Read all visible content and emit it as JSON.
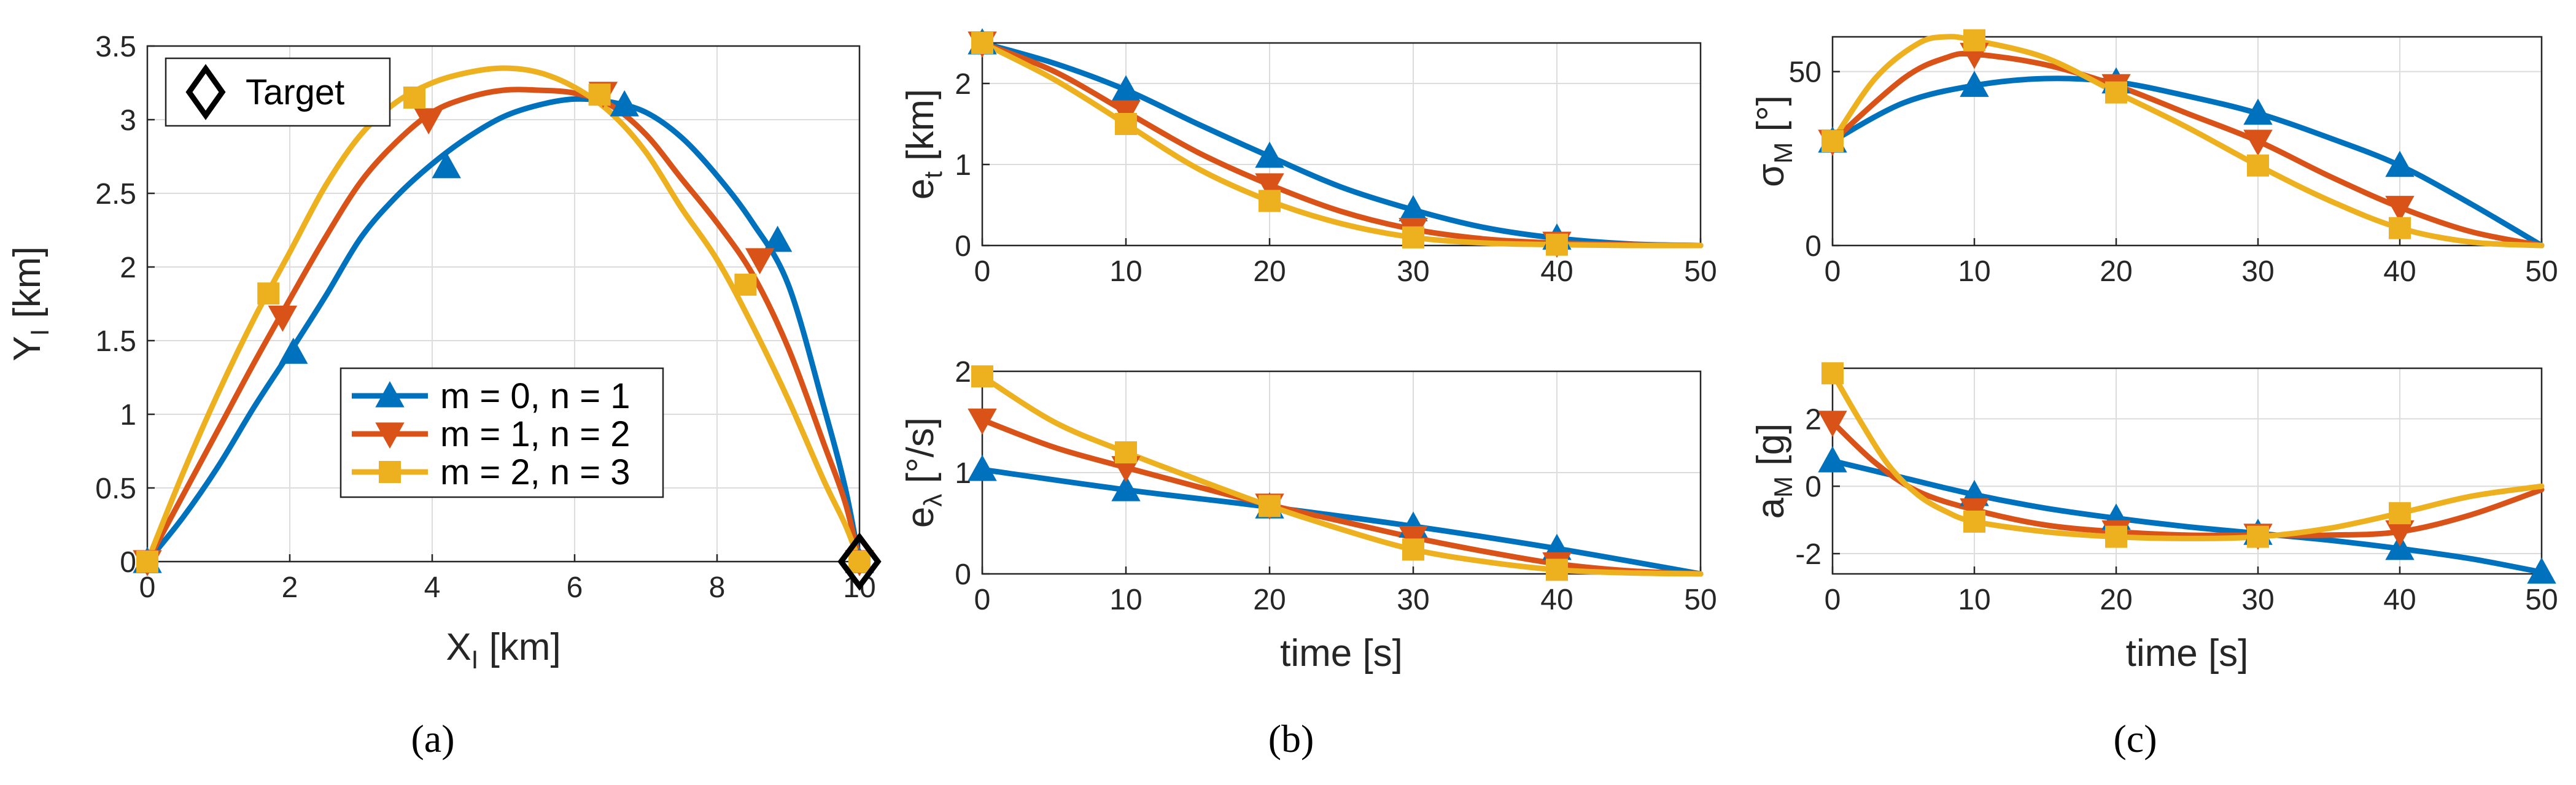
{
  "chart_data": [
    {
      "id": "a",
      "type": "line",
      "panel_label": "(a)",
      "xlabel": "X",
      "xlabel_sub": "I",
      "xlabel_unit": " [km]",
      "ylabel": "Y",
      "ylabel_sub": "I",
      "ylabel_unit": " [km]",
      "xlim": [
        0,
        10
      ],
      "ylim": [
        0,
        3.5
      ],
      "xticks": [
        0,
        2,
        4,
        6,
        8,
        10
      ],
      "yticks": [
        0,
        0.5,
        1,
        1.5,
        2,
        2.5,
        3,
        3.5
      ],
      "yticklabels": [
        "0",
        "0.5",
        "1",
        "1.5",
        "2",
        "2.5",
        "3",
        "3.5"
      ],
      "legend": {
        "placement": "lower-center",
        "entries": [
          "m = 0, n = 1",
          "m = 1, n = 2",
          "m = 2, n = 3"
        ]
      },
      "target": {
        "label": "Target",
        "x": 10,
        "y": 0
      },
      "series": [
        {
          "name": "m = 0, n = 1",
          "x": [
            0,
            0.5,
            1,
            1.5,
            2,
            2.5,
            3,
            3.5,
            4,
            4.5,
            5,
            5.5,
            6,
            6.5,
            7,
            7.5,
            8,
            8.5,
            9,
            9.5,
            9.8,
            10
          ],
          "y": [
            0,
            0.3,
            0.65,
            1.05,
            1.42,
            1.8,
            2.2,
            2.48,
            2.7,
            2.88,
            3.02,
            3.1,
            3.14,
            3.12,
            3.05,
            2.88,
            2.62,
            2.3,
            1.88,
            1.05,
            0.5,
            0
          ],
          "markers_x": [
            0,
            2.05,
            4.2,
            6.7,
            8.85,
            10
          ],
          "markers_y": [
            0,
            1.42,
            2.68,
            3.1,
            2.18,
            0
          ]
        },
        {
          "name": "m = 1, n = 2",
          "x": [
            0,
            0.5,
            1,
            1.5,
            2,
            2.5,
            3,
            3.5,
            4,
            4.5,
            5,
            5.5,
            6,
            6.5,
            7,
            7.5,
            8,
            8.5,
            9,
            9.5,
            9.8,
            10
          ],
          "y": [
            0,
            0.45,
            0.9,
            1.35,
            1.78,
            2.2,
            2.58,
            2.85,
            3.05,
            3.15,
            3.2,
            3.2,
            3.18,
            3.1,
            2.9,
            2.6,
            2.3,
            1.95,
            1.45,
            0.8,
            0.4,
            0
          ],
          "markers_x": [
            0,
            1.9,
            3.95,
            6.4,
            8.6,
            10
          ],
          "markers_y": [
            0,
            1.66,
            3.0,
            3.18,
            2.05,
            0
          ]
        },
        {
          "name": "m = 2, n = 3",
          "x": [
            0,
            0.5,
            1,
            1.5,
            2,
            2.5,
            3,
            3.5,
            4,
            4.5,
            5,
            5.5,
            6,
            6.5,
            7,
            7.5,
            8,
            8.5,
            9,
            9.5,
            9.8,
            10
          ],
          "y": [
            0,
            0.6,
            1.15,
            1.65,
            2.1,
            2.55,
            2.9,
            3.12,
            3.25,
            3.32,
            3.35,
            3.32,
            3.22,
            3.05,
            2.78,
            2.4,
            2.05,
            1.6,
            1.1,
            0.55,
            0.25,
            0
          ],
          "markers_x": [
            0,
            1.7,
            3.75,
            6.35,
            8.4,
            10
          ],
          "markers_y": [
            0,
            1.82,
            3.15,
            3.17,
            1.88,
            0
          ]
        }
      ]
    },
    {
      "id": "b1",
      "type": "line",
      "ylabel": "e",
      "ylabel_sub": "t",
      "ylabel_unit": " [km]",
      "xlim": [
        0,
        50
      ],
      "ylim": [
        0,
        2.5
      ],
      "xticks": [
        0,
        10,
        20,
        30,
        40,
        50
      ],
      "yticks": [
        0,
        1,
        2
      ],
      "yticklabels": [
        "0",
        "1",
        "2"
      ],
      "series": [
        {
          "name": "m = 0, n = 1",
          "x": [
            0,
            5,
            10,
            15,
            20,
            25,
            30,
            35,
            40,
            45,
            50
          ],
          "y": [
            2.5,
            2.25,
            1.92,
            1.5,
            1.1,
            0.72,
            0.44,
            0.22,
            0.09,
            0.02,
            0
          ],
          "markers_x": [
            0,
            10,
            20,
            30,
            40
          ],
          "markers_y": [
            2.5,
            1.92,
            1.1,
            0.44,
            0.09
          ]
        },
        {
          "name": "m = 1, n = 2",
          "x": [
            0,
            5,
            10,
            15,
            20,
            25,
            30,
            35,
            40,
            45,
            50
          ],
          "y": [
            2.5,
            2.15,
            1.65,
            1.15,
            0.75,
            0.42,
            0.2,
            0.08,
            0.03,
            0.01,
            0
          ],
          "markers_x": [
            0,
            10,
            20,
            30,
            40
          ],
          "markers_y": [
            2.5,
            1.65,
            0.75,
            0.2,
            0.03
          ]
        },
        {
          "name": "m = 2, n = 3",
          "x": [
            0,
            5,
            10,
            15,
            20,
            25,
            30,
            35,
            40,
            45,
            50
          ],
          "y": [
            2.5,
            2.05,
            1.5,
            0.95,
            0.55,
            0.27,
            0.1,
            0.03,
            0.01,
            0,
            0
          ],
          "markers_x": [
            0,
            10,
            20,
            30,
            40
          ],
          "markers_y": [
            2.5,
            1.5,
            0.55,
            0.1,
            0.01
          ]
        }
      ]
    },
    {
      "id": "b2",
      "type": "line",
      "panel_label": "(b)",
      "xlabel": "time [s]",
      "ylabel": "e",
      "ylabel_sub": "λ",
      "ylabel_unit": " [°/s]",
      "xlim": [
        0,
        50
      ],
      "ylim": [
        0,
        2
      ],
      "xticks": [
        0,
        10,
        20,
        30,
        40,
        50
      ],
      "yticks": [
        0,
        1,
        2
      ],
      "yticklabels": [
        "0",
        "1",
        "2"
      ],
      "series": [
        {
          "name": "m = 0, n = 1",
          "x": [
            0,
            10,
            20,
            30,
            40,
            50
          ],
          "y": [
            1.03,
            0.83,
            0.66,
            0.47,
            0.25,
            0
          ],
          "markers_x": [
            0,
            10,
            20,
            30,
            40
          ],
          "markers_y": [
            1.03,
            0.83,
            0.66,
            0.47,
            0.25
          ]
        },
        {
          "name": "m = 1, n = 2",
          "x": [
            0,
            5,
            10,
            15,
            20,
            25,
            30,
            35,
            40,
            45,
            50
          ],
          "y": [
            1.52,
            1.25,
            1.05,
            0.86,
            0.68,
            0.52,
            0.36,
            0.22,
            0.1,
            0.03,
            0
          ],
          "markers_x": [
            0,
            10,
            20,
            30,
            40
          ],
          "markers_y": [
            1.52,
            1.05,
            0.68,
            0.36,
            0.1
          ]
        },
        {
          "name": "m = 2, n = 3",
          "x": [
            0,
            5,
            10,
            15,
            20,
            25,
            30,
            35,
            40,
            45,
            50
          ],
          "y": [
            1.95,
            1.5,
            1.2,
            0.93,
            0.67,
            0.44,
            0.24,
            0.12,
            0.04,
            0.01,
            0
          ],
          "markers_x": [
            0,
            10,
            20,
            30,
            40
          ],
          "markers_y": [
            1.95,
            1.2,
            0.67,
            0.24,
            0.04
          ]
        }
      ]
    },
    {
      "id": "c1",
      "type": "line",
      "ylabel": "σ",
      "ylabel_sub": "M",
      "ylabel_unit": " [°]",
      "xlim": [
        0,
        50
      ],
      "ylim": [
        0,
        60
      ],
      "xticks": [
        0,
        10,
        20,
        30,
        40,
        50
      ],
      "yticks": [
        0,
        50
      ],
      "yticklabels": [
        "0",
        "50"
      ],
      "series": [
        {
          "name": "m = 0, n = 1",
          "x": [
            0,
            5,
            10,
            15,
            20,
            25,
            30,
            35,
            40,
            45,
            50
          ],
          "y": [
            30,
            41,
            46,
            48,
            47,
            43,
            38,
            31,
            23,
            12,
            0
          ],
          "markers_x": [
            0,
            10,
            20,
            30,
            40
          ],
          "markers_y": [
            30,
            46,
            47,
            38,
            23
          ]
        },
        {
          "name": "m = 1, n = 2",
          "x": [
            0,
            5,
            8,
            10,
            15,
            20,
            25,
            30,
            35,
            40,
            45,
            50
          ],
          "y": [
            30,
            48,
            54,
            55,
            52,
            46,
            38,
            30,
            20,
            11,
            4,
            0
          ],
          "markers_x": [
            0,
            10,
            20,
            30,
            40
          ],
          "markers_y": [
            30,
            55,
            46,
            30,
            11
          ]
        },
        {
          "name": "m = 2, n = 3",
          "x": [
            0,
            3,
            6,
            8,
            10,
            15,
            20,
            25,
            30,
            35,
            40,
            45,
            50
          ],
          "y": [
            30,
            48,
            58,
            60,
            59,
            54,
            44,
            34,
            23,
            13,
            5,
            1,
            0
          ],
          "markers_x": [
            0,
            10,
            20,
            30,
            40
          ],
          "markers_y": [
            30,
            59,
            44,
            23,
            5
          ]
        }
      ]
    },
    {
      "id": "c2",
      "type": "line",
      "panel_label": "(c)",
      "xlabel": "time [s]",
      "ylabel": "a",
      "ylabel_sub": "M",
      "ylabel_unit": " [g]",
      "xlim": [
        0,
        50
      ],
      "ylim": [
        -2.6,
        3.5
      ],
      "xticks": [
        0,
        10,
        20,
        30,
        40,
        50
      ],
      "yticks": [
        -2,
        0,
        2
      ],
      "yticklabels": [
        "-2",
        "0",
        "2"
      ],
      "series": [
        {
          "name": "m = 0, n = 1",
          "x": [
            0,
            5,
            10,
            15,
            20,
            25,
            30,
            35,
            40,
            45,
            50
          ],
          "y": [
            0.75,
            0.25,
            -0.25,
            -0.65,
            -0.95,
            -1.2,
            -1.4,
            -1.6,
            -1.85,
            -2.15,
            -2.55
          ],
          "markers_x": [
            0,
            10,
            20,
            30,
            40,
            50
          ],
          "markers_y": [
            0.75,
            -0.25,
            -0.95,
            -1.4,
            -1.85,
            -2.55
          ]
        },
        {
          "name": "m = 1, n = 2",
          "x": [
            0,
            3,
            6,
            10,
            15,
            20,
            25,
            30,
            35,
            40,
            45,
            50
          ],
          "y": [
            1.9,
            0.7,
            -0.15,
            -0.7,
            -1.15,
            -1.35,
            -1.45,
            -1.45,
            -1.45,
            -1.35,
            -0.85,
            -0.1
          ],
          "markers_x": [
            0,
            10,
            20,
            30,
            40
          ],
          "markers_y": [
            1.9,
            -0.7,
            -1.35,
            -1.45,
            -1.35
          ]
        },
        {
          "name": "m = 2, n = 3",
          "x": [
            0,
            2,
            4,
            6,
            8,
            10,
            15,
            20,
            25,
            30,
            35,
            40,
            45,
            50
          ],
          "y": [
            3.35,
            1.9,
            0.6,
            -0.25,
            -0.75,
            -1.05,
            -1.35,
            -1.5,
            -1.55,
            -1.5,
            -1.25,
            -0.8,
            -0.3,
            0
          ],
          "markers_x": [
            0,
            10,
            20,
            30,
            40
          ],
          "markers_y": [
            3.35,
            -1.05,
            -1.5,
            -1.5,
            -0.8
          ]
        }
      ]
    }
  ],
  "colors": {
    "s0": "#0072BD",
    "s1": "#D95319",
    "s2": "#EDB120",
    "axis": "#262626",
    "grid": "#dcdcdc"
  }
}
